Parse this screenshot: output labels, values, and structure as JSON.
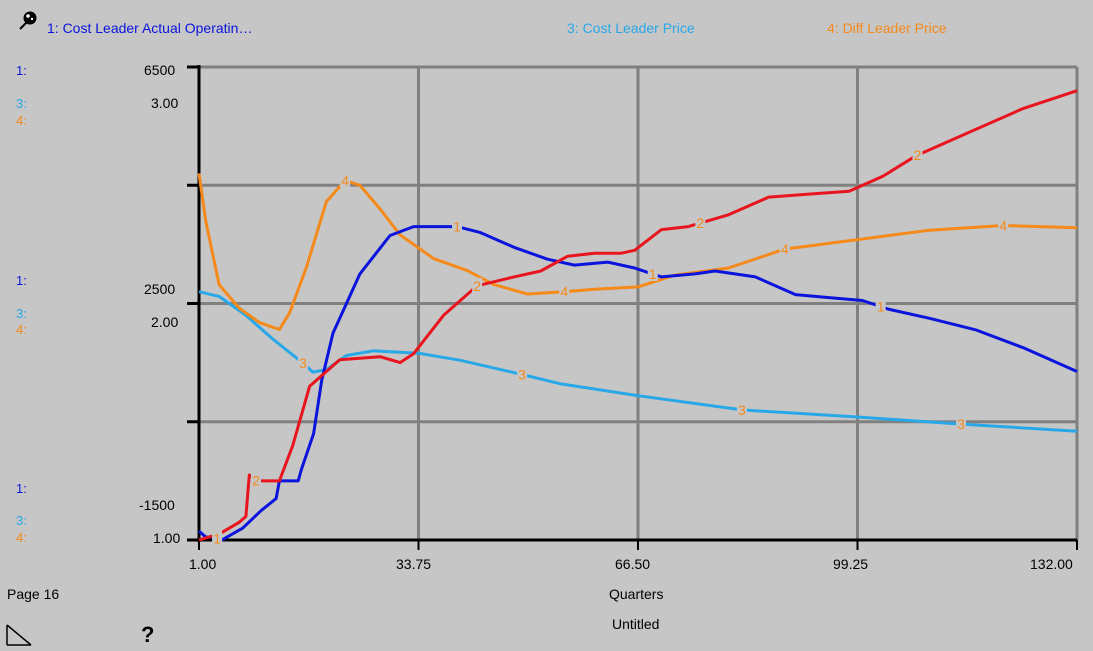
{
  "header": {
    "series1_label": "1: Cost Leader Actual Operatin…",
    "series3_label": "3: Cost Leader Price",
    "series4_label": "4: Diff Leader Price"
  },
  "footer": {
    "page_label": "Page 16",
    "x_axis_label": "Quarters",
    "untitled_label": "Untitled",
    "help_glyph": "?"
  },
  "axis_keys": {
    "k1": "1:",
    "k3": "3:",
    "k4": "4:"
  },
  "colors": {
    "series1": "#0a14dc",
    "series2": "#e8141e",
    "series3": "#28a8e8",
    "series4": "#f58a1a",
    "grid": "#808080",
    "background": "#c6c6c6"
  },
  "chart_data": {
    "type": "line",
    "xlabel": "Quarters",
    "xlim": [
      1.0,
      132.0
    ],
    "x_ticks": [
      "1.00",
      "33.75",
      "66.50",
      "99.25",
      "132.00"
    ],
    "y_tick_labels_left_top": [
      "6500",
      "3.00"
    ],
    "y_tick_labels_left_mid": [
      "2500",
      "2.00"
    ],
    "y_tick_labels_left_bottom": [
      "-1500",
      "1.00"
    ],
    "axis_series1": {
      "range": [
        -1500,
        6500
      ],
      "ticks": [
        "6500",
        "2500",
        "-1500"
      ]
    },
    "axis_series34": {
      "range": [
        1.0,
        3.0
      ],
      "ticks": [
        "3.00",
        "2.00",
        "1.00"
      ]
    },
    "grid": true,
    "series": [
      {
        "name": "1: Cost Leader Actual Operatin…",
        "label_marker": "1",
        "axis": "series1",
        "marker_x": [
          3.7,
          39.5,
          68.7,
          102.7
        ],
        "points": [
          [
            1.0,
            -1350
          ],
          [
            2.0,
            -1450
          ],
          [
            2.9,
            -1450
          ],
          [
            4.4,
            -1500
          ],
          [
            7.5,
            -1300
          ],
          [
            10.3,
            -1000
          ],
          [
            12.5,
            -800
          ],
          [
            13.0,
            -500
          ],
          [
            15.8,
            -500
          ],
          [
            16.3,
            -300
          ],
          [
            18.1,
            300
          ],
          [
            19.3,
            1200
          ],
          [
            21.0,
            2000
          ],
          [
            25.0,
            3000
          ],
          [
            29.5,
            3650
          ],
          [
            33.0,
            3800
          ],
          [
            39.5,
            3800
          ],
          [
            43.0,
            3700
          ],
          [
            48.0,
            3450
          ],
          [
            53.0,
            3250
          ],
          [
            57.0,
            3150
          ],
          [
            62.0,
            3200
          ],
          [
            66.0,
            3100
          ],
          [
            70.0,
            2950
          ],
          [
            75.0,
            3000
          ],
          [
            78.0,
            3050
          ],
          [
            84.0,
            2950
          ],
          [
            90.0,
            2650
          ],
          [
            95.0,
            2600
          ],
          [
            100.0,
            2550
          ],
          [
            104.0,
            2400
          ],
          [
            110.0,
            2250
          ],
          [
            117.0,
            2050
          ],
          [
            124.0,
            1750
          ],
          [
            132.0,
            1350
          ]
        ]
      },
      {
        "name": "",
        "label_marker": "2",
        "axis": "series1",
        "marker_x": [
          9.5,
          42.5,
          75.8,
          108.2
        ],
        "points": [
          [
            1.0,
            -1500
          ],
          [
            4.0,
            -1400
          ],
          [
            7.0,
            -1200
          ],
          [
            8.0,
            -1100
          ],
          [
            8.5,
            -400
          ],
          [
            9.6,
            -500
          ],
          [
            13.0,
            -500
          ],
          [
            15.0,
            100
          ],
          [
            17.5,
            1100
          ],
          [
            22.0,
            1550
          ],
          [
            28.0,
            1600
          ],
          [
            31.0,
            1500
          ],
          [
            33.0,
            1650
          ],
          [
            37.5,
            2300
          ],
          [
            42.5,
            2800
          ],
          [
            48.0,
            2950
          ],
          [
            52.0,
            3050
          ],
          [
            56.0,
            3300
          ],
          [
            60.0,
            3350
          ],
          [
            64.0,
            3350
          ],
          [
            66.0,
            3400
          ],
          [
            70.0,
            3750
          ],
          [
            74.0,
            3800
          ],
          [
            80.0,
            4000
          ],
          [
            86.0,
            4300
          ],
          [
            92.0,
            4350
          ],
          [
            98.0,
            4400
          ],
          [
            103.0,
            4650
          ],
          [
            108.0,
            5000
          ],
          [
            116.0,
            5400
          ],
          [
            124.0,
            5800
          ],
          [
            132.0,
            6100
          ]
        ]
      },
      {
        "name": "3: Cost Leader Price",
        "label_marker": "3",
        "axis": "series34",
        "marker_x": [
          16.5,
          49.2,
          82.0,
          114.7
        ],
        "points": [
          [
            1.0,
            2.05
          ],
          [
            4.0,
            2.03
          ],
          [
            8.0,
            1.95
          ],
          [
            12.0,
            1.85
          ],
          [
            16.0,
            1.76
          ],
          [
            18.0,
            1.71
          ],
          [
            20.0,
            1.72
          ],
          [
            23.0,
            1.78
          ],
          [
            27.0,
            1.8
          ],
          [
            33.75,
            1.79
          ],
          [
            40.0,
            1.76
          ],
          [
            49.2,
            1.7
          ],
          [
            55.0,
            1.66
          ],
          [
            66.5,
            1.61
          ],
          [
            82.0,
            1.55
          ],
          [
            99.25,
            1.52
          ],
          [
            114.7,
            1.49
          ],
          [
            132.0,
            1.46
          ]
        ]
      },
      {
        "name": "4: Diff Leader Price",
        "label_marker": "4",
        "axis": "series34",
        "marker_x": [
          22.8,
          55.5,
          88.4,
          121.0
        ],
        "points": [
          [
            1.0,
            2.55
          ],
          [
            2.0,
            2.35
          ],
          [
            4.0,
            2.08
          ],
          [
            7.0,
            1.98
          ],
          [
            10.0,
            1.92
          ],
          [
            13.0,
            1.89
          ],
          [
            14.5,
            1.96
          ],
          [
            17.0,
            2.15
          ],
          [
            20.0,
            2.43
          ],
          [
            22.8,
            2.52
          ],
          [
            25.0,
            2.5
          ],
          [
            28.0,
            2.4
          ],
          [
            31.0,
            2.29
          ],
          [
            36.0,
            2.19
          ],
          [
            41.0,
            2.14
          ],
          [
            45.0,
            2.08
          ],
          [
            50.0,
            2.04
          ],
          [
            55.5,
            2.05
          ],
          [
            60.0,
            2.06
          ],
          [
            66.5,
            2.07
          ],
          [
            72.0,
            2.12
          ],
          [
            80.0,
            2.15
          ],
          [
            88.4,
            2.23
          ],
          [
            99.25,
            2.27
          ],
          [
            110.0,
            2.31
          ],
          [
            121.0,
            2.33
          ],
          [
            132.0,
            2.32
          ]
        ]
      }
    ]
  }
}
